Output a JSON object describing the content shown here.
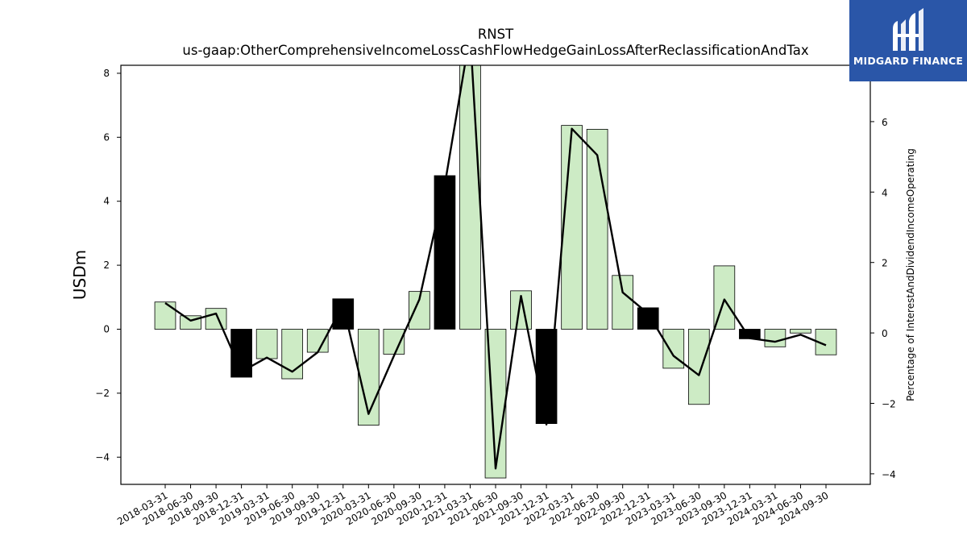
{
  "chart_data": {
    "type": "bar",
    "title": "RNST",
    "subtitle": "us-gaap:OtherComprehensiveIncomeLossCashFlowHedgeGainLossAfterReclassificationAndTax",
    "ylabel": "USDm",
    "y2label": "Percentage of InterestAndDividendIncomeOperating",
    "ylim": [
      -4.85,
      8.25
    ],
    "y2lim": [
      -4.3,
      7.6
    ],
    "yticks": [
      -4,
      -2,
      0,
      2,
      4,
      6,
      8
    ],
    "y2ticks": [
      -4,
      -2,
      0,
      2,
      4,
      6
    ],
    "categories": [
      "2018-03-31",
      "2018-06-30",
      "2018-09-30",
      "2018-12-31",
      "2019-03-31",
      "2019-06-30",
      "2019-09-30",
      "2019-12-31",
      "2020-03-31",
      "2020-06-30",
      "2020-09-30",
      "2020-12-31",
      "2021-03-31",
      "2021-06-30",
      "2021-09-30",
      "2021-12-31",
      "2022-03-31",
      "2022-06-30",
      "2022-09-30",
      "2022-12-31",
      "2023-03-31",
      "2023-06-30",
      "2023-09-30",
      "2023-12-31",
      "2024-03-31",
      "2024-06-30",
      "2024-09-30"
    ],
    "series": [
      {
        "values": [
          0.85,
          0.42,
          0.65,
          -1.5,
          -0.92,
          -1.55,
          -0.72,
          0.95,
          -3.0,
          -0.78,
          1.18,
          4.8,
          8.5,
          -4.65,
          1.2,
          -2.95,
          6.37,
          6.25,
          1.68,
          0.67,
          -1.22,
          -2.35,
          1.98,
          -0.3,
          -0.55,
          -0.12,
          -0.8
        ],
        "highlight": [
          false,
          false,
          false,
          true,
          false,
          false,
          false,
          true,
          false,
          false,
          false,
          true,
          false,
          false,
          false,
          true,
          false,
          false,
          false,
          true,
          false,
          false,
          false,
          true,
          false,
          false,
          false
        ]
      },
      {
        "axis": "right",
        "type": "line",
        "values": [
          0.85,
          0.35,
          0.55,
          -1.1,
          -0.7,
          -1.1,
          -0.55,
          0.8,
          -2.3,
          -0.65,
          0.95,
          4.2,
          8.5,
          -3.85,
          1.05,
          -2.6,
          5.8,
          5.05,
          1.15,
          0.55,
          -0.65,
          -1.2,
          0.95,
          -0.15,
          -0.25,
          -0.05,
          -0.35
        ]
      }
    ],
    "colors": {
      "bar": "#cdebc5",
      "bar_highlight": "#000000",
      "line": "#000000"
    }
  },
  "logo": {
    "text": "MIDGARD FINANCE"
  }
}
